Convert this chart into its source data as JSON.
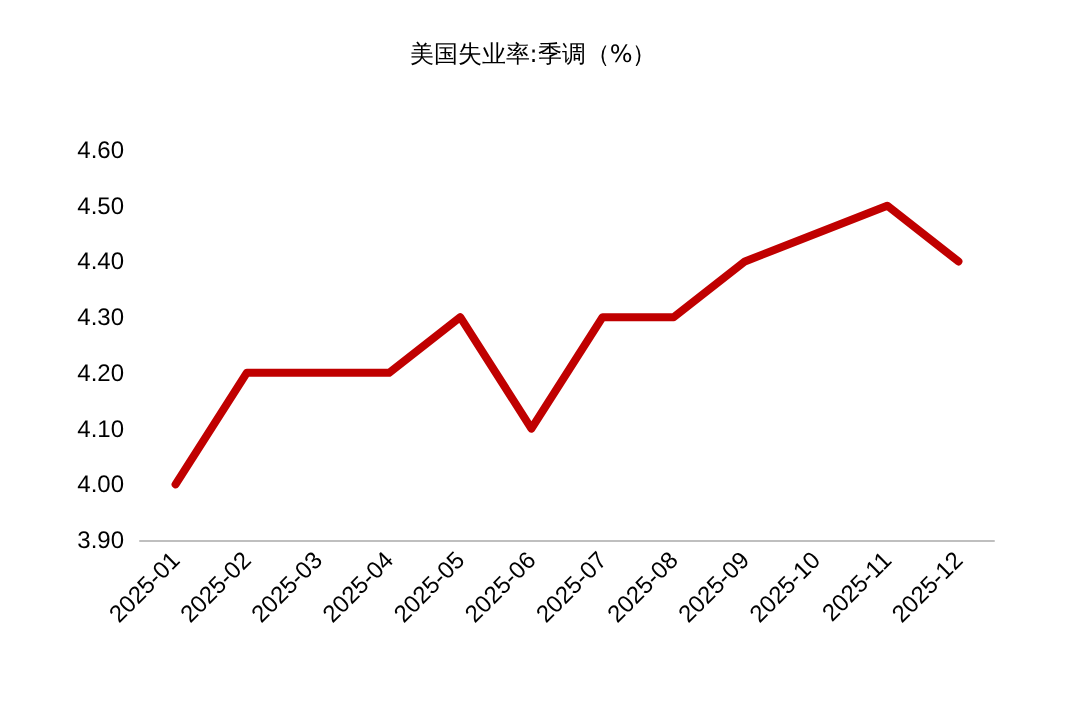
{
  "chart_data": {
    "type": "line",
    "title": "美国失业率:季调（%）",
    "categories": [
      "2025-01",
      "2025-02",
      "2025-03",
      "2025-04",
      "2025-05",
      "2025-06",
      "2025-07",
      "2025-08",
      "2025-09",
      "2025-10",
      "2025-11",
      "2025-12"
    ],
    "series": [
      {
        "color": "#c00000",
        "values": [
          4.0,
          4.2,
          4.2,
          4.2,
          4.3,
          4.1,
          4.3,
          4.3,
          4.4,
          null,
          4.5,
          4.4
        ]
      }
    ],
    "ylim": [
      3.9,
      4.6
    ],
    "yticks": [
      {
        "value": 3.9,
        "label": "3.90"
      },
      {
        "value": 4.0,
        "label": "4.00"
      },
      {
        "value": 4.1,
        "label": "4.10"
      },
      {
        "value": 4.2,
        "label": "4.20"
      },
      {
        "value": 4.3,
        "label": "4.30"
      },
      {
        "value": 4.4,
        "label": "4.40"
      },
      {
        "value": 4.5,
        "label": "4.50"
      },
      {
        "value": 4.6,
        "label": "4.60"
      }
    ],
    "grid": false,
    "marker": "none",
    "line_style": "solid"
  }
}
